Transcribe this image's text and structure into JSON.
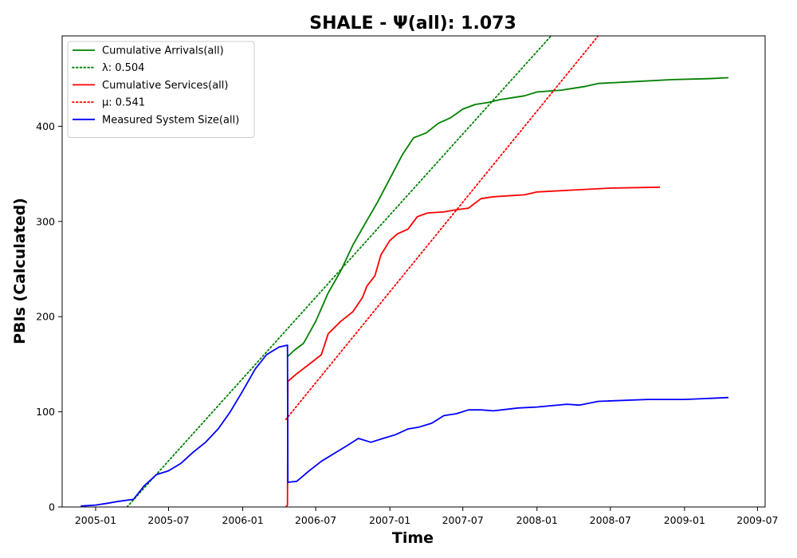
{
  "chart_data": {
    "type": "line",
    "title": "SHALE -  Ψ(all): 1.073",
    "xlabel": "Time",
    "ylabel": "PBIs (Calculated)",
    "xlim": [
      "2004-10-10",
      "2009-07-20"
    ],
    "ylim": [
      0,
      495
    ],
    "x_ticks": [
      "2005-01",
      "2005-07",
      "2006-01",
      "2006-07",
      "2007-01",
      "2007-07",
      "2008-01",
      "2008-07",
      "2009-01",
      "2009-07"
    ],
    "y_ticks": [
      0,
      100,
      200,
      300,
      400
    ],
    "grid": false,
    "legend_position": "top-left",
    "series": [
      {
        "name": "Cumulative Arrivals(all)",
        "style": "solid",
        "color": "#008000",
        "points": [
          [
            "2006-04-22",
            158
          ],
          [
            "2006-05-10",
            165
          ],
          [
            "2006-06-01",
            172
          ],
          [
            "2006-07-01",
            195
          ],
          [
            "2006-08-01",
            225
          ],
          [
            "2006-09-01",
            248
          ],
          [
            "2006-10-01",
            275
          ],
          [
            "2006-11-01",
            298
          ],
          [
            "2006-12-01",
            320
          ],
          [
            "2007-01-01",
            345
          ],
          [
            "2007-02-01",
            370
          ],
          [
            "2007-03-01",
            388
          ],
          [
            "2007-04-01",
            393
          ],
          [
            "2007-05-01",
            403
          ],
          [
            "2007-06-01",
            409
          ],
          [
            "2007-07-01",
            418
          ],
          [
            "2007-08-01",
            423
          ],
          [
            "2007-09-01",
            425
          ],
          [
            "2007-10-01",
            428
          ],
          [
            "2007-12-01",
            432
          ],
          [
            "2008-01-01",
            436
          ],
          [
            "2008-03-01",
            438
          ],
          [
            "2008-04-01",
            440
          ],
          [
            "2008-05-01",
            442
          ],
          [
            "2008-06-01",
            445
          ],
          [
            "2008-09-01",
            447
          ],
          [
            "2008-12-01",
            449
          ],
          [
            "2009-03-01",
            450
          ],
          [
            "2009-04-20",
            451
          ]
        ]
      },
      {
        "name": "λ: 0.504",
        "style": "dotted",
        "color": "#008000",
        "points": [
          [
            "2005-03-20",
            0
          ],
          [
            "2008-02-05",
            495
          ]
        ]
      },
      {
        "name": "Cumulative Services(all)",
        "style": "solid",
        "color": "#ff0000",
        "points": [
          [
            "2006-04-18",
            0
          ],
          [
            "2006-04-22",
            2
          ],
          [
            "2006-04-23",
            132
          ],
          [
            "2006-05-15",
            140
          ],
          [
            "2006-06-15",
            150
          ],
          [
            "2006-07-15",
            160
          ],
          [
            "2006-08-01",
            182
          ],
          [
            "2006-09-01",
            195
          ],
          [
            "2006-10-01",
            205
          ],
          [
            "2006-10-25",
            220
          ],
          [
            "2006-11-05",
            232
          ],
          [
            "2006-11-25",
            243
          ],
          [
            "2006-12-10",
            265
          ],
          [
            "2007-01-01",
            280
          ],
          [
            "2007-01-20",
            287
          ],
          [
            "2007-02-15",
            292
          ],
          [
            "2007-03-10",
            305
          ],
          [
            "2007-04-05",
            309
          ],
          [
            "2007-05-15",
            310
          ],
          [
            "2007-06-10",
            312
          ],
          [
            "2007-07-15",
            314
          ],
          [
            "2007-08-15",
            324
          ],
          [
            "2007-09-15",
            326
          ],
          [
            "2007-12-01",
            328
          ],
          [
            "2008-01-01",
            331
          ],
          [
            "2008-04-01",
            333
          ],
          [
            "2008-07-01",
            335
          ],
          [
            "2008-11-01",
            336
          ]
        ]
      },
      {
        "name": "μ: 0.541",
        "style": "dotted",
        "color": "#ff0000",
        "points": [
          [
            "2006-04-18",
            92
          ],
          [
            "2008-06-01",
            495
          ]
        ]
      },
      {
        "name": "Measured System Size(all)",
        "style": "solid",
        "color": "#0000ff",
        "points": [
          [
            "2004-11-25",
            1
          ],
          [
            "2005-01-01",
            2
          ],
          [
            "2005-02-01",
            4
          ],
          [
            "2005-03-01",
            6
          ],
          [
            "2005-04-05",
            8
          ],
          [
            "2005-05-01",
            22
          ],
          [
            "2005-06-01",
            34
          ],
          [
            "2005-07-01",
            38
          ],
          [
            "2005-08-01",
            46
          ],
          [
            "2005-09-01",
            58
          ],
          [
            "2005-10-01",
            68
          ],
          [
            "2005-11-01",
            82
          ],
          [
            "2005-12-01",
            100
          ],
          [
            "2006-01-01",
            122
          ],
          [
            "2006-02-01",
            145
          ],
          [
            "2006-03-01",
            160
          ],
          [
            "2006-04-01",
            168
          ],
          [
            "2006-04-22",
            170
          ],
          [
            "2006-04-23",
            26
          ],
          [
            "2006-05-15",
            27
          ],
          [
            "2006-06-15",
            38
          ],
          [
            "2006-07-15",
            48
          ],
          [
            "2006-08-15",
            56
          ],
          [
            "2006-09-15",
            64
          ],
          [
            "2006-10-15",
            72
          ],
          [
            "2006-11-15",
            68
          ],
          [
            "2006-12-15",
            72
          ],
          [
            "2007-01-15",
            76
          ],
          [
            "2007-02-15",
            82
          ],
          [
            "2007-03-15",
            84
          ],
          [
            "2007-04-15",
            88
          ],
          [
            "2007-05-15",
            96
          ],
          [
            "2007-06-15",
            98
          ],
          [
            "2007-07-15",
            102
          ],
          [
            "2007-08-15",
            102
          ],
          [
            "2007-09-15",
            101
          ],
          [
            "2007-11-15",
            104
          ],
          [
            "2008-01-01",
            105
          ],
          [
            "2008-03-15",
            108
          ],
          [
            "2008-04-15",
            107
          ],
          [
            "2008-06-01",
            111
          ],
          [
            "2008-10-01",
            113
          ],
          [
            "2009-01-01",
            113
          ],
          [
            "2009-04-20",
            115
          ]
        ]
      }
    ]
  }
}
